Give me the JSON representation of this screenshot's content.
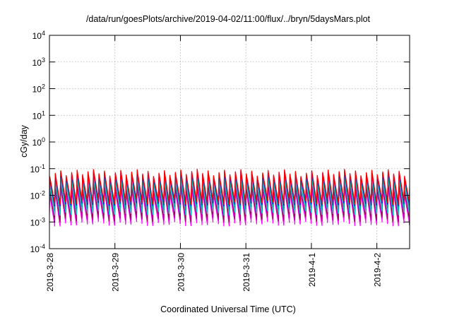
{
  "chart_data": {
    "type": "line",
    "title": "/data/run/goesPlots/archive/2019-04-02/11:00/flux/../bryn/5daysMars.plot",
    "xlabel": "Coordinated Universal Time (UTC)",
    "ylabel": "cGy/day",
    "yscale": "log",
    "ylim": [
      0.0001,
      10000
    ],
    "xlim": [
      "2019-03-28T00:00",
      "2019-04-02T12:00"
    ],
    "grid": true,
    "y_tick_labels": [
      {
        "base": "10",
        "exp": "-4"
      },
      {
        "base": "10",
        "exp": "-3"
      },
      {
        "base": "10",
        "exp": "-2"
      },
      {
        "base": "10",
        "exp": "-1"
      },
      {
        "base": "10",
        "exp": "0"
      },
      {
        "base": "10",
        "exp": "1"
      },
      {
        "base": "10",
        "exp": "2"
      },
      {
        "base": "10",
        "exp": "3"
      },
      {
        "base": "10",
        "exp": "4"
      }
    ],
    "x_tick_labels": [
      "2019-3-28",
      "2019-3-29",
      "2019-3-30",
      "2019-3-31",
      "2019-4-1",
      "2019-4-2"
    ],
    "cycles_per_day": 12,
    "series": [
      {
        "color": "#ff0000",
        "peak": [
          0.05,
          0.095
        ],
        "trough": [
          0.0045,
          0.007
        ]
      },
      {
        "color": "#0000ff",
        "peak": [
          0.045,
          0.085
        ],
        "trough": [
          0.004,
          0.006
        ]
      },
      {
        "color": "#00aaaa",
        "peak": [
          0.035,
          0.065
        ],
        "trough": [
          0.0028,
          0.0045
        ]
      },
      {
        "color": "#00cccc",
        "peak": [
          0.025,
          0.045
        ],
        "trough": [
          0.0018,
          0.003
        ]
      },
      {
        "color": "#a00060",
        "peak": [
          0.015,
          0.028
        ],
        "trough": [
          0.001,
          0.0018
        ]
      },
      {
        "color": "#ff00ff",
        "peak": [
          0.01,
          0.02
        ],
        "trough": [
          0.0007,
          0.0012
        ]
      }
    ]
  }
}
